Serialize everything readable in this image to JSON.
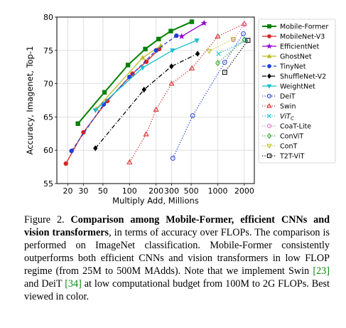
{
  "chart_data": {
    "type": "line",
    "xlabel": "Multiply Add, Millions",
    "ylabel": "Accuracy, Imagenet, Top-1",
    "x_scale": "log",
    "xlim": [
      15,
      2600
    ],
    "ylim": [
      55,
      80
    ],
    "x_ticks": [
      20,
      30,
      50,
      100,
      200,
      300,
      500,
      1000,
      2000
    ],
    "x_tick_labels": [
      "20",
      "30",
      "50",
      "100",
      "200",
      "300",
      "500",
      "1000",
      "2000"
    ],
    "y_ticks": [
      55,
      60,
      65,
      70,
      75,
      80
    ],
    "grid": true,
    "legend_position": "right",
    "series": [
      {
        "name": "Mobile-Former",
        "color": "#008000",
        "marker": "square",
        "line": "solid",
        "width": 2,
        "x": [
          26,
          52,
          96,
          151,
          214,
          294,
          508
        ],
        "y": [
          64.0,
          68.7,
          72.8,
          75.2,
          76.7,
          77.9,
          79.3
        ]
      },
      {
        "name": "MobileNet-V3",
        "color": "#d62728",
        "marker": "circle",
        "line": "solid",
        "width": 1.3,
        "x": [
          19,
          30,
          56,
          108,
          155,
          217
        ],
        "y": [
          58.0,
          62.7,
          67.4,
          71.5,
          73.3,
          75.2
        ]
      },
      {
        "name": "EfficientNet",
        "color": "#9400d3",
        "marker": "star",
        "line": "solid",
        "width": 1.3,
        "x": [
          390,
          700
        ],
        "y": [
          77.1,
          79.1
        ]
      },
      {
        "name": "GhostNet",
        "color": "#bcbd22",
        "marker": "triangle-up",
        "line": "solid",
        "width": 1.3,
        "x": [
          42,
          141,
          226
        ],
        "y": [
          66.2,
          73.9,
          75.7
        ]
      },
      {
        "name": "TinyNet",
        "color": "#1f3fd6",
        "marker": "circle",
        "line": "dashed",
        "width": 1.3,
        "x": [
          22,
          51,
          100,
          200,
          340
        ],
        "y": [
          59.9,
          66.9,
          71.0,
          75.0,
          77.2
        ]
      },
      {
        "name": "ShuffleNet-V2",
        "color": "#000000",
        "marker": "diamond",
        "line": "dashdot",
        "width": 1.3,
        "x": [
          41,
          146,
          299,
          591
        ],
        "y": [
          60.3,
          69.1,
          72.6,
          74.5
        ]
      },
      {
        "name": "WeightNet",
        "color": "#17becf",
        "marker": "triangle-down",
        "line": "solid",
        "width": 1.3,
        "x": [
          41,
          141,
          307,
          580
        ],
        "y": [
          66.0,
          72.4,
          75.0,
          76.5
        ]
      },
      {
        "name": "DeiT",
        "color": "#1f3fd6",
        "marker": "circle-open",
        "line": "dotted",
        "width": 1.3,
        "x": [
          310,
          520,
          1200,
          1950
        ],
        "y": [
          58.8,
          65.2,
          73.2,
          77.5
        ]
      },
      {
        "name": "Swin",
        "color": "#d62728",
        "marker": "triangle-up-open",
        "line": "dotted",
        "width": 1.3,
        "x": [
          100,
          154,
          200,
          300,
          510,
          1000,
          2000
        ],
        "y": [
          58.2,
          62.4,
          66.1,
          70.0,
          72.3,
          77.1,
          79.0
        ]
      },
      {
        "name": "ViT_C",
        "color": "#17becf",
        "marker": "x",
        "line": "dotted",
        "width": 1.3,
        "x": [
          1020,
          2100
        ],
        "y": [
          74.5,
          76.5
        ]
      },
      {
        "name": "CoaT-Lite",
        "color": "#e377c2",
        "marker": "circle-open",
        "line": "dotted",
        "width": 1.3,
        "x": [
          1500,
          2000
        ],
        "y": [
          76.6,
          78.9
        ]
      },
      {
        "name": "ConViT",
        "color": "#2ca02c",
        "marker": "diamond-open",
        "line": "dotted",
        "width": 1.3,
        "x": [
          1000,
          2000
        ],
        "y": [
          73.1,
          76.6
        ]
      },
      {
        "name": "ConT",
        "color": "#bcbd22",
        "marker": "triangle-down-open",
        "line": "dotted",
        "width": 1.3,
        "x": [
          800,
          1500
        ],
        "y": [
          74.9,
          76.7
        ]
      },
      {
        "name": "T2T-ViT",
        "color": "#000000",
        "marker": "square-open",
        "line": "dotted",
        "width": 1.3,
        "x": [
          1200,
          2200
        ],
        "y": [
          71.7,
          76.5
        ]
      }
    ],
    "legend_labels": [
      "Mobile-Former",
      "MobileNet-V3",
      "EfficientNet",
      "GhostNet",
      "TinyNet",
      "ShuffleNet-V2",
      "WeightNet",
      "DeiT",
      "Swin",
      "ViT",
      "CoaT-Lite",
      "ConViT",
      "ConT",
      "T2T-ViT"
    ],
    "legend_label_subscripts": [
      "",
      "",
      "",
      "",
      "",
      "",
      "",
      "",
      "",
      "C",
      "",
      "",
      "",
      ""
    ]
  },
  "caption": {
    "label": "Figure 2.",
    "bold": "Comparison among Mobile-Former, efficient CNNs and vision transformers",
    "part1": ", in terms of accuracy over FLOPs. The comparison is performed on ImageNet classification. Mobile-Former consistently outperforms both efficient CNNs and vision transformers in low FLOP regime (from 25M to 500M MAdds). Note that we implement Swin ",
    "ref1": "[23]",
    "part2": " and DeiT ",
    "ref2": "[34]",
    "part3": " at low computational budget from 100M to 2G FLOPs. Best viewed in color."
  }
}
